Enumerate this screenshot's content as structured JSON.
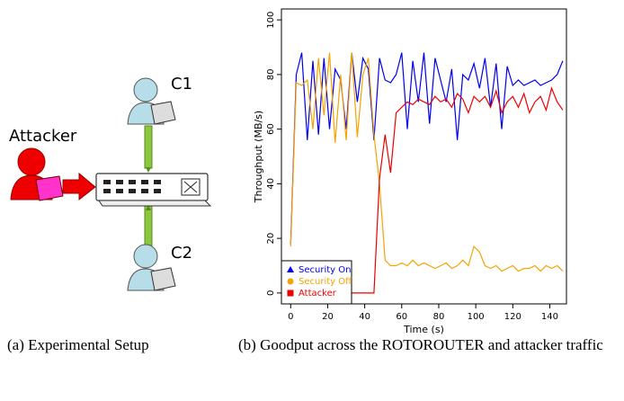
{
  "diagram": {
    "attacker_label": "Attacker",
    "client1_label": "C1",
    "client2_label": "C2"
  },
  "captions": {
    "a": "(a) Experimental Setup",
    "b": "(b) Goodput across the ROTOROUTER and attacker traffic"
  },
  "chart_data": {
    "type": "line",
    "x_label": "Time (s)",
    "y_label": "Throughput (MB/s)",
    "x": [
      0,
      3,
      6,
      9,
      12,
      15,
      18,
      21,
      24,
      27,
      30,
      33,
      36,
      39,
      42,
      45,
      48,
      51,
      54,
      57,
      60,
      63,
      66,
      69,
      72,
      75,
      78,
      81,
      84,
      87,
      90,
      93,
      96,
      99,
      102,
      105,
      108,
      111,
      114,
      117,
      120,
      123,
      126,
      129,
      132,
      135,
      138,
      141,
      144,
      147
    ],
    "series": [
      {
        "name": "Security On",
        "color": "#0000ee",
        "marker": "triangle",
        "values": [
          18,
          80,
          88,
          56,
          85,
          58,
          86,
          60,
          82,
          78,
          60,
          88,
          70,
          86,
          82,
          56,
          86,
          78,
          77,
          80,
          88,
          60,
          85,
          70,
          88,
          62,
          86,
          78,
          70,
          82,
          56,
          80,
          78,
          84,
          75,
          86,
          68,
          84,
          60,
          83,
          76,
          78,
          76,
          77,
          78,
          76,
          77,
          78,
          80,
          85
        ]
      },
      {
        "name": "Security Off",
        "color": "#f5a300",
        "marker": "circle",
        "values": [
          17,
          77,
          76,
          78,
          60,
          86,
          65,
          88,
          55,
          80,
          56,
          88,
          57,
          80,
          86,
          58,
          40,
          12,
          10,
          10,
          11,
          10,
          12,
          10,
          11,
          10,
          9,
          10,
          11,
          9,
          10,
          12,
          10,
          17,
          15,
          10,
          9,
          10,
          8,
          9,
          10,
          8,
          9,
          9,
          10,
          8,
          10,
          9,
          10,
          8
        ]
      },
      {
        "name": "Attacker",
        "color": "#ee0000",
        "marker": "square",
        "values": [
          0,
          0,
          0,
          0,
          0,
          0,
          0,
          0,
          0,
          0,
          0,
          0,
          0,
          0,
          0,
          0,
          42,
          58,
          44,
          66,
          68,
          70,
          69,
          71,
          70,
          69,
          72,
          70,
          71,
          68,
          73,
          71,
          66,
          72,
          70,
          72,
          68,
          74,
          66,
          70,
          72,
          68,
          73,
          66,
          70,
          72,
          67,
          75,
          70,
          67
        ]
      }
    ],
    "xlim": [
      -5,
      149
    ],
    "ylim": [
      -4,
      104
    ],
    "xticks": [
      0,
      20,
      40,
      60,
      80,
      100,
      120,
      140
    ],
    "yticks": [
      0,
      20,
      40,
      60,
      80,
      100
    ],
    "legend": "bottom-left"
  }
}
